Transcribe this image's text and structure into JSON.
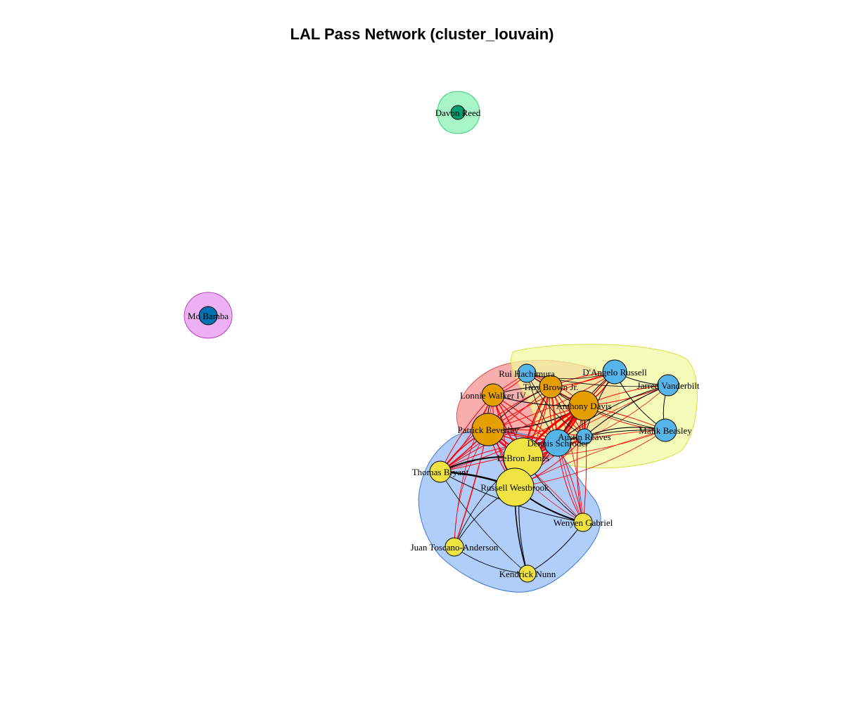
{
  "title": "LAL Pass Network (cluster_louvain)",
  "colors": {
    "blue_node": "#56B4E9",
    "orange_node": "#E69F00",
    "yellow_node": "#F0E442",
    "green_node": "#009E73",
    "darkblue_node": "#0072B2",
    "cross_edge": "#FF0000",
    "intra_edge": "#000000",
    "hull_green_fill": "#A8F5C8",
    "hull_green_stroke": "#3CD27A",
    "hull_pink_fill": "#EEB0F5",
    "hull_pink_stroke": "#C03CC8",
    "hull_red_fill": "#F8A0A0",
    "hull_red_stroke": "#E05050",
    "hull_yellow_fill": "#F0F8A0",
    "hull_yellow_stroke": "#D8E040",
    "hull_blue_fill": "#A8C8F8",
    "hull_blue_stroke": "#3C78D8"
  },
  "players": [
    {
      "key": "davon",
      "label": "Davon Reed",
      "group": "green"
    },
    {
      "key": "mobamba",
      "label": "Mo Bamba",
      "group": "darkblue"
    },
    {
      "key": "rui",
      "label": "Rui Hachimura",
      "group": "blue"
    },
    {
      "key": "dangelo",
      "label": "D'Angelo Russell",
      "group": "blue"
    },
    {
      "key": "jarred",
      "label": "Jarred Vanderbilt",
      "group": "blue"
    },
    {
      "key": "malik",
      "label": "Malik Beasley",
      "group": "blue"
    },
    {
      "key": "austin",
      "label": "Austin Reaves",
      "group": "blue"
    },
    {
      "key": "dennis",
      "label": "Dennis Schroder",
      "group": "blue"
    },
    {
      "key": "troy",
      "label": "Troy Brown Jr.",
      "group": "orange"
    },
    {
      "key": "anthony",
      "label": "Anthony Davis",
      "group": "orange"
    },
    {
      "key": "lonnie",
      "label": "Lonnie Walker IV",
      "group": "orange"
    },
    {
      "key": "patrick",
      "label": "Patrick Beverley",
      "group": "orange"
    },
    {
      "key": "lebron",
      "label": "LeBron James",
      "group": "yellow"
    },
    {
      "key": "thomas",
      "label": "Thomas Bryant",
      "group": "yellow"
    },
    {
      "key": "russell",
      "label": "Russell Westbrook",
      "group": "yellow"
    },
    {
      "key": "wenyen",
      "label": "Wenyen Gabriel",
      "group": "yellow"
    },
    {
      "key": "juan",
      "label": "Juan Toscano-Anderson",
      "group": "yellow"
    },
    {
      "key": "kendrick",
      "label": "Kendrick Nunn",
      "group": "yellow"
    }
  ]
}
